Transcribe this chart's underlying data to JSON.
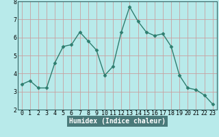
{
  "x": [
    0,
    1,
    2,
    3,
    4,
    5,
    6,
    7,
    8,
    9,
    10,
    11,
    12,
    13,
    14,
    15,
    16,
    17,
    18,
    19,
    20,
    21,
    22,
    23
  ],
  "y": [
    3.4,
    3.6,
    3.2,
    3.2,
    4.6,
    5.5,
    5.6,
    6.3,
    5.8,
    5.3,
    3.9,
    4.4,
    6.3,
    7.7,
    6.9,
    6.3,
    6.1,
    6.2,
    5.5,
    3.9,
    3.2,
    3.1,
    2.8,
    2.3
  ],
  "line_color": "#2e7d6e",
  "bg_color": "#b8eaea",
  "grid_color": "#c8a0a0",
  "xlabel": "Humidex (Indice chaleur)",
  "xlabel_fontsize": 7,
  "xlim": [
    -0.5,
    23.5
  ],
  "ylim": [
    2,
    8
  ],
  "yticks": [
    2,
    3,
    4,
    5,
    6,
    7,
    8
  ],
  "xticks": [
    0,
    1,
    2,
    3,
    4,
    5,
    6,
    7,
    8,
    9,
    10,
    11,
    12,
    13,
    14,
    15,
    16,
    17,
    18,
    19,
    20,
    21,
    22,
    23
  ],
  "marker": "D",
  "marker_size": 2.5,
  "line_width": 1.0,
  "tick_fontsize": 6,
  "footer_bg": "#4a7a7a"
}
